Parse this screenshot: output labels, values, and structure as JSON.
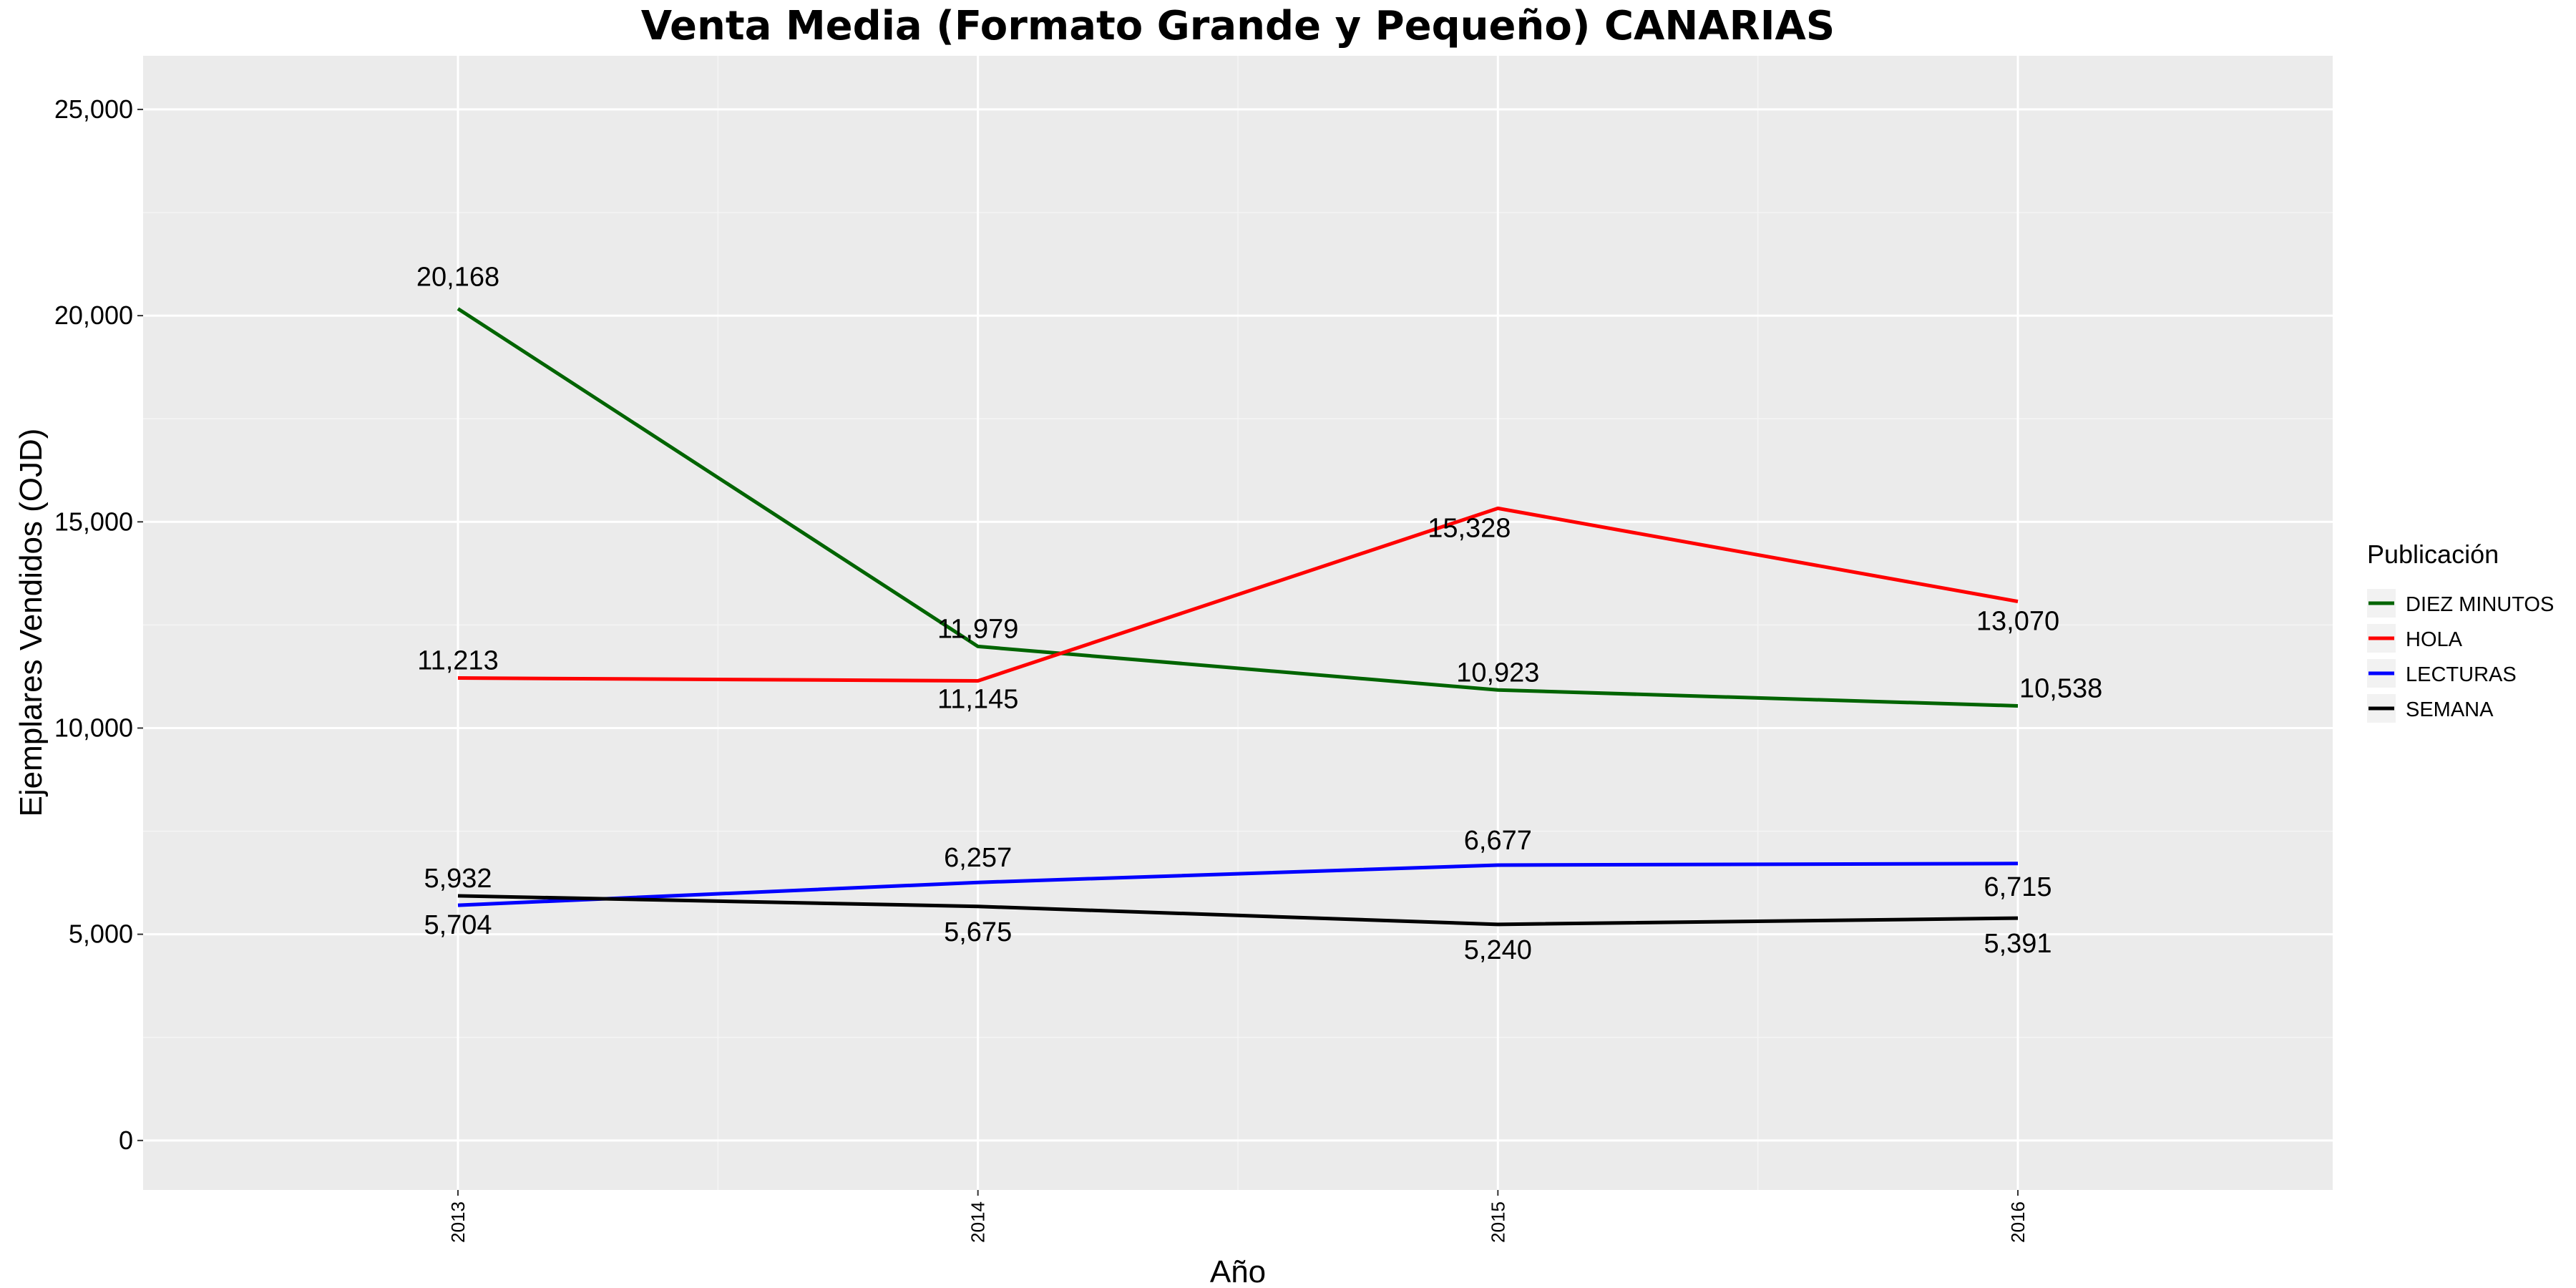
{
  "chart_data": {
    "type": "line",
    "title": "Venta Media (Formato Grande y Pequeño)  CANARIAS",
    "xlabel": "Año",
    "ylabel": "Ejemplares Vendidos (OJD)",
    "x": [
      "2013",
      "2014",
      "2015",
      "2016"
    ],
    "ylim": [
      -1200,
      26300
    ],
    "yticks": [
      0,
      5000,
      10000,
      15000,
      20000,
      25000
    ],
    "ytick_labels": [
      "0",
      "5,000",
      "10,000",
      "15,000",
      "20,000",
      "25,000"
    ],
    "grid": true,
    "legend": {
      "title": "Publicación",
      "placement": "right"
    },
    "series": [
      {
        "name": "DIEZ MINUTOS",
        "color": "#006400",
        "values": [
          20168,
          11979,
          10923,
          10538
        ],
        "labels": [
          "20,168",
          "11,979",
          "10,923",
          "10,538"
        ]
      },
      {
        "name": "HOLA",
        "color": "#ff0000",
        "values": [
          11213,
          11145,
          15328,
          13070
        ],
        "labels": [
          "11,213",
          "11,145",
          "15,328",
          "13,070"
        ]
      },
      {
        "name": "LECTURAS",
        "color": "#0000ff",
        "values": [
          5704,
          6257,
          6677,
          6715
        ],
        "labels": [
          "5,704",
          "6,257",
          "6,677",
          "6,715"
        ]
      },
      {
        "name": "SEMANA",
        "color": "#000000",
        "values": [
          5932,
          5675,
          5240,
          5391
        ],
        "labels": [
          "5,932",
          "5,675",
          "5,240",
          "5,391"
        ]
      }
    ]
  }
}
